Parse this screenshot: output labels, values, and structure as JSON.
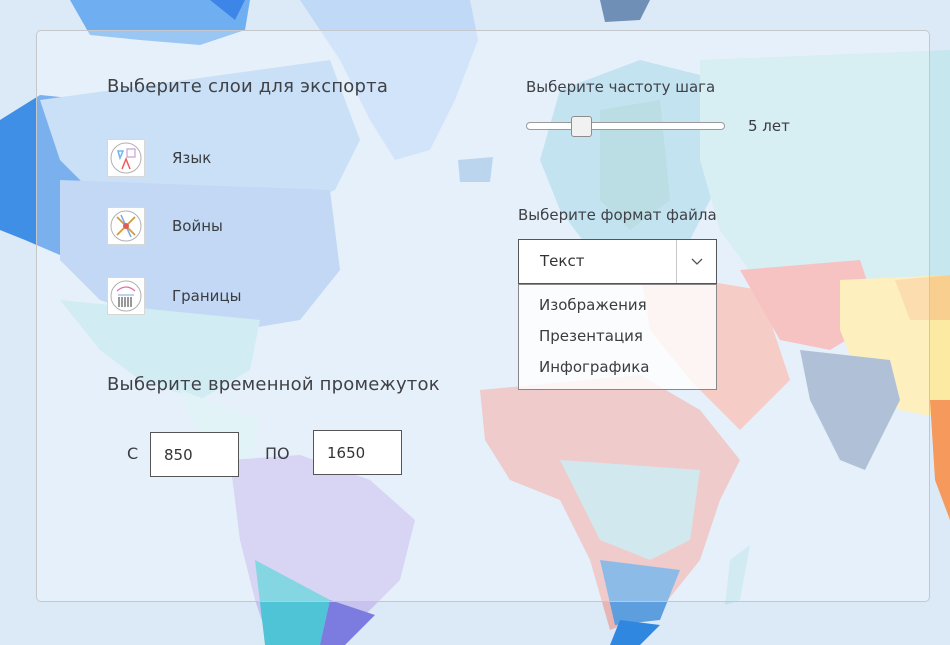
{
  "layers_section": {
    "title": "Выберите слои для экспорта",
    "items": [
      {
        "label": "Язык",
        "icon": "language-layer-icon"
      },
      {
        "label": "Войны",
        "icon": "wars-layer-icon"
      },
      {
        "label": "Границы",
        "icon": "borders-layer-icon"
      }
    ]
  },
  "time_range": {
    "title": "Выберите временной промежуток",
    "from_label": "С",
    "from_value": "850",
    "to_label": "ПО",
    "to_value": "1650"
  },
  "step": {
    "title": "Выберите частоту шага",
    "value_label": "5 лет",
    "slider_fraction": 0.25
  },
  "file_format": {
    "title": "Выберите формат файла",
    "selected": "Текст",
    "options": [
      "Изображения",
      "Презентация",
      "Инфографика"
    ]
  }
}
